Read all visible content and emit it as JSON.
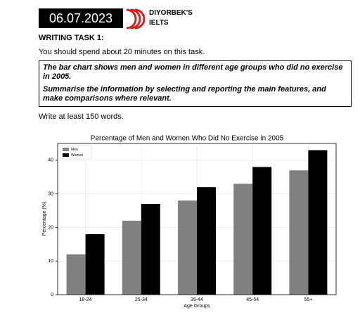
{
  "header": {
    "date": "06.07.2023",
    "brand": [
      "DIYORBEK'S",
      "IELTS"
    ]
  },
  "task": {
    "title": "WRITING TASK 1:",
    "instruction": "You should spend about 20 minutes on this task.",
    "prompt": [
      "The bar chart shows men and women in different age groups who did no exercise in 2005.",
      "Summarise the information by selecting and reporting the main features, and make comparisons where relevant."
    ],
    "word_count": "Write at least 150 words."
  },
  "chart_data": {
    "type": "bar",
    "title": "Percentage of Men and Women Who Did No Exercise in 2005",
    "xlabel": "Age Groups",
    "ylabel": "Percentage (%)",
    "categories": [
      "18-24",
      "25-34",
      "35-44",
      "45-54",
      "55+"
    ],
    "series": [
      {
        "name": "Men",
        "color": "#808080",
        "values": [
          12,
          22,
          28,
          33,
          37
        ]
      },
      {
        "name": "Women",
        "color": "#000000",
        "values": [
          18,
          27,
          32,
          38,
          43
        ]
      }
    ],
    "ylim": [
      0,
      45
    ],
    "yticks": [
      0,
      10,
      20,
      30,
      40
    ],
    "grid": true,
    "legend": "upper left"
  }
}
